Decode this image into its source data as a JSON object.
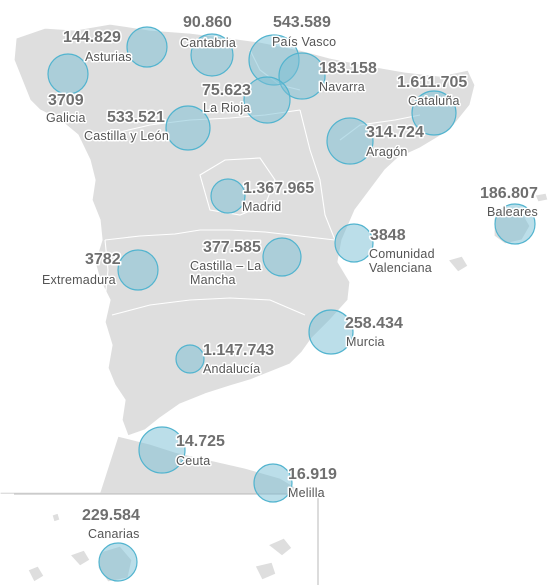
{
  "colors": {
    "land": "#dedede",
    "bubble_fill": "#9fd0df",
    "bubble_stroke": "#52b4cf",
    "text": "#6f6f6f"
  },
  "regions": [
    {
      "id": "asturias",
      "value": "144.829",
      "name": "Asturias"
    },
    {
      "id": "cantabria",
      "value": "90.860",
      "name": "Cantabria"
    },
    {
      "id": "pais-vasco",
      "value": "543.589",
      "name": "País Vasco"
    },
    {
      "id": "navarra",
      "value": "183.158",
      "name": "Navarra"
    },
    {
      "id": "galicia",
      "value": "3709",
      "name": "Galicia"
    },
    {
      "id": "la-rioja",
      "value": "75.623",
      "name": "La Rioja"
    },
    {
      "id": "cataluna",
      "value": "1.611.705",
      "name": "Cataluña"
    },
    {
      "id": "castilla-leon",
      "value": "533.521",
      "name": "Castilla y León"
    },
    {
      "id": "aragon",
      "value": "314.724",
      "name": "Aragón"
    },
    {
      "id": "madrid",
      "value": "1.367.965",
      "name": "Madrid"
    },
    {
      "id": "baleares",
      "value": "186.807",
      "name": "Baleares"
    },
    {
      "id": "castilla-la-mancha",
      "value": "377.585",
      "name_line1": "Castilla – La",
      "name_line2": "Mancha"
    },
    {
      "id": "comunidad-valenciana",
      "value": "3848",
      "name_line1": "Comunidad",
      "name_line2": "Valenciana"
    },
    {
      "id": "extremadura",
      "value": "3782",
      "name": "Extremadura"
    },
    {
      "id": "murcia",
      "value": "258.434",
      "name": "Murcia"
    },
    {
      "id": "andalucia",
      "value": "1.147.743",
      "name": "Andalucía"
    },
    {
      "id": "ceuta",
      "value": "14.725",
      "name": "Ceuta"
    },
    {
      "id": "melilla",
      "value": "16.919",
      "name": "Melilla"
    },
    {
      "id": "canarias",
      "value": "229.584",
      "name": "Canarias"
    }
  ]
}
